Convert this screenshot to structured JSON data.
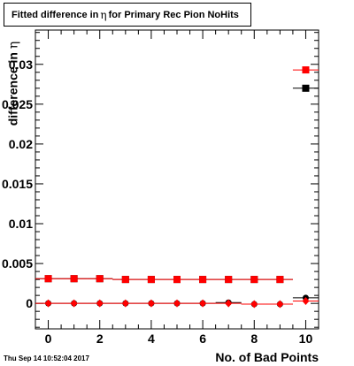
{
  "header": {
    "title_prefix": "Fitted difference in",
    "title_symbol": "η",
    "title_suffix": "for Primary Rec Pion NoHits"
  },
  "footer": {
    "timestamp": "Thu Sep 14 10:52:04 2017"
  },
  "chart_data": {
    "type": "scatter",
    "title": "Fitted difference in η for Primary Rec Pion NoHits",
    "xlabel": "No. of Bad Points",
    "ylabel": "difference in η",
    "ylabel_prefix": "difference in",
    "ylabel_symbol": "η",
    "xlim": [
      -0.5,
      10.5
    ],
    "ylim": [
      -0.0032,
      0.0343
    ],
    "xticks": [
      0,
      2,
      4,
      6,
      8,
      10
    ],
    "xtick_labels": [
      "0",
      "2",
      "4",
      "6",
      "8",
      "10"
    ],
    "yticks": [
      0,
      0.005,
      0.01,
      0.015,
      0.02,
      0.025,
      0.03
    ],
    "ytick_labels": [
      "0",
      "0.005",
      "0.01",
      "0.015",
      "0.02",
      "0.025",
      "0.03"
    ],
    "grid": false,
    "legend": "none",
    "series": [
      {
        "marker": "square",
        "color": "#000000",
        "x": [
          0,
          1,
          2,
          3,
          4,
          5,
          6,
          7,
          8,
          9,
          10
        ],
        "values": [
          0.0031,
          0.0031,
          0.0031,
          0.003,
          0.003,
          0.003,
          0.003,
          0.003,
          0.003,
          0.003,
          0.027
        ]
      },
      {
        "marker": "square",
        "color": "#ff0000",
        "x": [
          0,
          1,
          2,
          3,
          4,
          5,
          6,
          7,
          8,
          9,
          10
        ],
        "values": [
          0.0031,
          0.0031,
          0.0031,
          0.003,
          0.003,
          0.003,
          0.003,
          0.003,
          0.003,
          0.003,
          0.0293
        ]
      },
      {
        "marker": "circle",
        "color": "#000000",
        "x": [
          0,
          1,
          2,
          3,
          4,
          5,
          6,
          7,
          8,
          9,
          10
        ],
        "values": [
          0,
          0,
          0,
          0,
          0,
          0,
          0,
          0.0001,
          -0.0001,
          -0.0001,
          0.0007
        ]
      },
      {
        "marker": "diamond",
        "color": "#ff0000",
        "x": [
          0,
          1,
          2,
          3,
          4,
          5,
          6,
          7,
          8,
          9,
          10
        ],
        "values": [
          0,
          0,
          0,
          0,
          0,
          0,
          0,
          0,
          -0.0001,
          -0.0001,
          0.0003
        ]
      }
    ]
  }
}
